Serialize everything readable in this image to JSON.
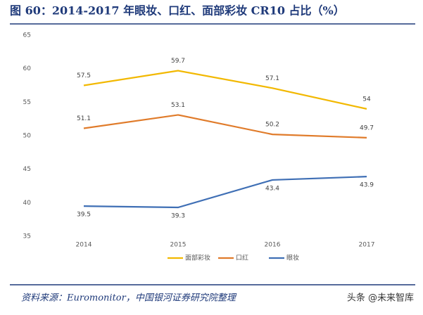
{
  "title": "图 60：2014-2017 年眼妆、口红、面部彩妆 CR10 占比（%）",
  "chart_data": {
    "type": "line",
    "categories": [
      "2014",
      "2015",
      "2016",
      "2017"
    ],
    "series": [
      {
        "name": "面部彩妆",
        "color": "#f2b800",
        "values": [
          57.5,
          59.7,
          57.1,
          54
        ]
      },
      {
        "name": "口红",
        "color": "#e07b2a",
        "values": [
          51.1,
          53.1,
          50.2,
          49.7
        ]
      },
      {
        "name": "眼妆",
        "color": "#3f6fb5",
        "values": [
          39.5,
          39.3,
          43.4,
          43.9
        ]
      }
    ],
    "ylim": [
      35,
      65
    ],
    "yticks": [
      35,
      40,
      45,
      50,
      55,
      60,
      65
    ],
    "grid": false,
    "legend": "bottom"
  },
  "source": "资料来源：Euromonitor，中国银河证券研究院整理",
  "watermark": "头条 @未来智库"
}
